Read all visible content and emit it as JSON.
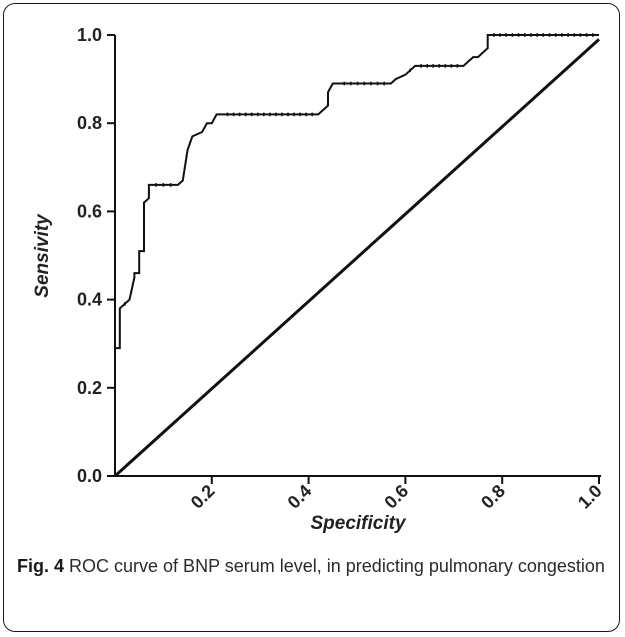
{
  "chart_data": {
    "type": "line",
    "xlabel": "Specificity",
    "ylabel": "Sensivity",
    "xlim": [
      0,
      1
    ],
    "ylim": [
      0,
      1
    ],
    "x_ticks": [
      "0.2",
      "0.4",
      "0.6",
      "0.8",
      "1.0"
    ],
    "y_ticks": [
      "0.0",
      "0.2",
      "0.4",
      "0.6",
      "0.8",
      "1.0"
    ],
    "grid": false,
    "series": [
      {
        "x": [
          0,
          0,
          0.01,
          0.01,
          0.03,
          0.03,
          0.04,
          0.04,
          0.05,
          0.05,
          0.06,
          0.06,
          0.07,
          0.07,
          0.13,
          0.14,
          0.15,
          0.16,
          0.18,
          0.19,
          0.2,
          0.21,
          0.22,
          0.42,
          0.43,
          0.44,
          0.44,
          0.45,
          0.46,
          0.57,
          0.58,
          0.6,
          0.62,
          0.72,
          0.73,
          0.74,
          0.75,
          0.76,
          0.77,
          0.77,
          1.0
        ],
        "y": [
          0,
          0.29,
          0.29,
          0.38,
          0.4,
          0.4,
          0.45,
          0.46,
          0.46,
          0.51,
          0.51,
          0.62,
          0.63,
          0.66,
          0.66,
          0.67,
          0.74,
          0.77,
          0.78,
          0.8,
          0.8,
          0.82,
          0.82,
          0.82,
          0.83,
          0.84,
          0.87,
          0.89,
          0.89,
          0.89,
          0.9,
          0.91,
          0.93,
          0.93,
          0.94,
          0.95,
          0.95,
          0.96,
          0.97,
          1.0,
          1.0
        ]
      },
      {
        "x": [
          0,
          1
        ],
        "y": [
          0,
          0.99
        ]
      }
    ]
  },
  "caption": {
    "label": "Fig. 4",
    "text": "ROC curve of BNP serum level, in predicting pulmonary congestion"
  },
  "colors": {
    "line": "#111111",
    "text": "#2b2b2b"
  }
}
